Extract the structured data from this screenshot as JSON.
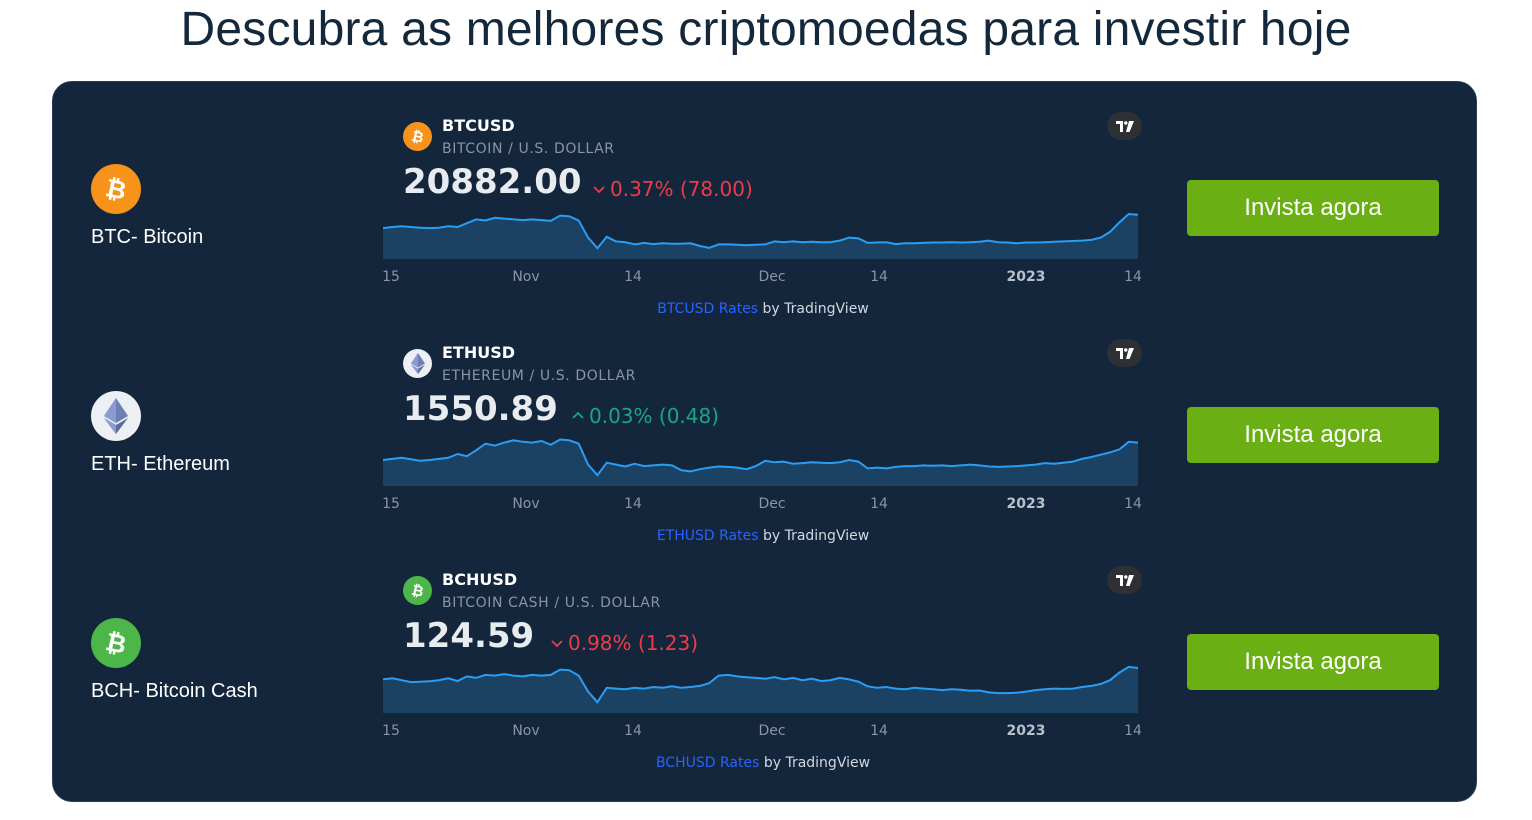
{
  "page": {
    "title": "Descubra as melhores criptomoedas para investir hoje",
    "invest_label": "Invista agora"
  },
  "axis_labels": [
    {
      "text": "15",
      "bold": false
    },
    {
      "text": "Nov",
      "bold": false
    },
    {
      "text": "14",
      "bold": false
    },
    {
      "text": "Dec",
      "bold": false
    },
    {
      "text": "14",
      "bold": false
    },
    {
      "text": "2023",
      "bold": true
    },
    {
      "text": "14",
      "bold": false
    }
  ],
  "coins": [
    {
      "name": "BTC- Bitcoin",
      "icon": "bitcoin-icon",
      "icon_color": "#f7931a",
      "symbol": "BTCUSD",
      "description": "BITCOIN / U.S. DOLLAR",
      "price": "20882.00",
      "change": "0.37% (78.00)",
      "direction": "down",
      "attrib_link": "BTCUSD Rates",
      "attrib_rest": " by TradingView",
      "series": [
        0.55,
        0.58,
        0.6,
        0.58,
        0.56,
        0.55,
        0.56,
        0.6,
        0.58,
        0.68,
        0.78,
        0.75,
        0.82,
        0.8,
        0.78,
        0.76,
        0.78,
        0.76,
        0.74,
        0.88,
        0.86,
        0.75,
        0.3,
        0.02,
        0.32,
        0.2,
        0.18,
        0.12,
        0.16,
        0.13,
        0.15,
        0.14,
        0.14,
        0.15,
        0.08,
        0.03,
        0.12,
        0.12,
        0.11,
        0.1,
        0.11,
        0.12,
        0.2,
        0.18,
        0.2,
        0.18,
        0.19,
        0.18,
        0.18,
        0.22,
        0.3,
        0.28,
        0.16,
        0.17,
        0.18,
        0.13,
        0.15,
        0.15,
        0.16,
        0.17,
        0.17,
        0.18,
        0.17,
        0.18,
        0.19,
        0.22,
        0.18,
        0.17,
        0.15,
        0.17,
        0.17,
        0.18,
        0.19,
        0.2,
        0.21,
        0.22,
        0.24,
        0.3,
        0.45,
        0.7,
        0.92,
        0.9
      ],
      "series_ylim": [
        0,
        1
      ]
    },
    {
      "name": "ETH- Ethereum",
      "icon": "ethereum-icon",
      "icon_color": "#ecf0f5",
      "symbol": "ETHUSD",
      "description": "ETHEREUM / U.S. DOLLAR",
      "price": "1550.89",
      "change": "0.03% (0.48)",
      "direction": "up",
      "attrib_link": "ETHUSD Rates",
      "attrib_rest": " by TradingView",
      "series": [
        0.42,
        0.45,
        0.48,
        0.44,
        0.4,
        0.42,
        0.45,
        0.48,
        0.58,
        0.52,
        0.68,
        0.85,
        0.8,
        0.88,
        0.94,
        0.9,
        0.88,
        0.92,
        0.82,
        0.96,
        0.94,
        0.85,
        0.3,
        0.02,
        0.35,
        0.3,
        0.25,
        0.32,
        0.26,
        0.28,
        0.3,
        0.28,
        0.15,
        0.12,
        0.18,
        0.22,
        0.25,
        0.24,
        0.22,
        0.18,
        0.26,
        0.4,
        0.36,
        0.38,
        0.32,
        0.34,
        0.36,
        0.35,
        0.34,
        0.36,
        0.42,
        0.38,
        0.2,
        0.22,
        0.2,
        0.24,
        0.26,
        0.26,
        0.28,
        0.27,
        0.28,
        0.26,
        0.28,
        0.3,
        0.28,
        0.25,
        0.24,
        0.25,
        0.26,
        0.28,
        0.3,
        0.34,
        0.32,
        0.35,
        0.38,
        0.45,
        0.5,
        0.56,
        0.62,
        0.7,
        0.9,
        0.88
      ],
      "series_ylim": [
        0,
        1
      ]
    },
    {
      "name": "BCH- Bitcoin Cash",
      "icon": "bitcoin-cash-icon",
      "icon_color": "#4cb748",
      "symbol": "BCHUSD",
      "description": "BITCOIN CASH / U.S. DOLLAR",
      "price": "124.59",
      "change": "0.98% (1.23)",
      "direction": "down",
      "attrib_link": "BCHUSD Rates",
      "attrib_rest": " by TradingView",
      "series": [
        0.62,
        0.65,
        0.6,
        0.55,
        0.56,
        0.57,
        0.6,
        0.65,
        0.58,
        0.7,
        0.66,
        0.74,
        0.72,
        0.76,
        0.72,
        0.7,
        0.74,
        0.72,
        0.74,
        0.88,
        0.86,
        0.72,
        0.3,
        0.02,
        0.4,
        0.38,
        0.36,
        0.4,
        0.38,
        0.42,
        0.4,
        0.44,
        0.4,
        0.42,
        0.45,
        0.52,
        0.72,
        0.74,
        0.7,
        0.68,
        0.66,
        0.64,
        0.68,
        0.62,
        0.66,
        0.6,
        0.64,
        0.58,
        0.6,
        0.66,
        0.62,
        0.56,
        0.44,
        0.4,
        0.42,
        0.38,
        0.36,
        0.4,
        0.38,
        0.36,
        0.34,
        0.36,
        0.35,
        0.32,
        0.33,
        0.28,
        0.26,
        0.26,
        0.27,
        0.3,
        0.34,
        0.36,
        0.38,
        0.37,
        0.38,
        0.42,
        0.45,
        0.5,
        0.6,
        0.8,
        0.95,
        0.92
      ],
      "series_ylim": [
        0,
        1
      ]
    }
  ]
}
